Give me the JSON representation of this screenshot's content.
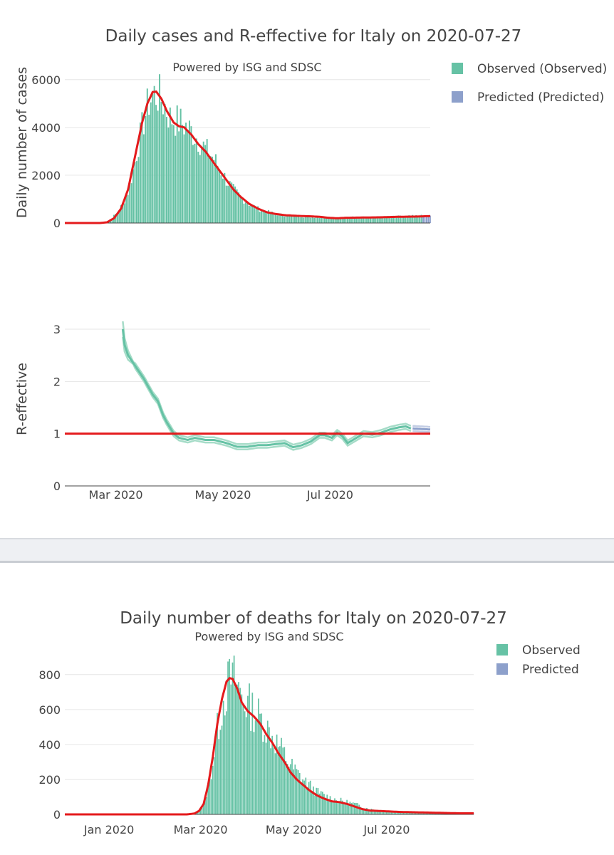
{
  "fig1": {
    "title": "Daily cases and R-effective for Italy on 2020-07-27",
    "annotation": "Powered by ISG and SDSC",
    "legend": [
      {
        "label": "Observed (Observed)",
        "color": "#66c2a5"
      },
      {
        "label": "Predicted (Predicted)",
        "color": "#8da0cb"
      }
    ]
  },
  "fig2": {
    "title": "Daily number of deaths for Italy on 2020-07-27",
    "annotation": "Powered by ISG and SDSC",
    "legend": [
      {
        "label": "Observed",
        "color": "#66c2a5"
      },
      {
        "label": "Predicted",
        "color": "#8da0cb"
      }
    ]
  },
  "colors": {
    "observed": "#66c2a5",
    "predicted": "#8da0cb",
    "smooth": "#e41a1c",
    "grid": "#e6e6e6",
    "axis": "#444444"
  },
  "chart_data": [
    {
      "type": "bar",
      "title": "Daily cases and R-effective for Italy on 2020-07-27",
      "ylabel": "Daily number of cases",
      "ylim": [
        0,
        6500
      ],
      "xlim_day": [
        0,
        208
      ],
      "y_ticks": [
        0,
        2000,
        4000,
        6000
      ],
      "series": [
        {
          "name": "Observed",
          "kind": "bar",
          "keypoints": [
            [
              0,
              0
            ],
            [
              20,
              0
            ],
            [
              23,
              10
            ],
            [
              26,
              100
            ],
            [
              28,
              300
            ],
            [
              30,
              450
            ],
            [
              33,
              800
            ],
            [
              36,
              1300
            ],
            [
              39,
              2200
            ],
            [
              42,
              3300
            ],
            [
              45,
              4300
            ],
            [
              48,
              5100
            ],
            [
              51,
              5400
            ],
            [
              54,
              5300
            ],
            [
              57,
              4900
            ],
            [
              60,
              4400
            ],
            [
              63,
              4300
            ],
            [
              66,
              4200
            ],
            [
              70,
              4000
            ],
            [
              75,
              3600
            ],
            [
              80,
              3100
            ],
            [
              85,
              2700
            ],
            [
              88,
              2300
            ],
            [
              92,
              1800
            ],
            [
              96,
              1400
            ],
            [
              100,
              1100
            ],
            [
              105,
              800
            ],
            [
              110,
              600
            ],
            [
              115,
              480
            ],
            [
              120,
              380
            ],
            [
              125,
              330
            ],
            [
              130,
              300
            ],
            [
              135,
              280
            ],
            [
              140,
              260
            ],
            [
              145,
              250
            ],
            [
              150,
              240
            ],
            [
              155,
              230
            ],
            [
              160,
              230
            ],
            [
              165,
              240
            ],
            [
              170,
              240
            ],
            [
              180,
              250
            ],
            [
              190,
              270
            ],
            [
              200,
              290
            ],
            [
              208,
              300
            ]
          ],
          "noise_amp": 0.18,
          "end_day": 203
        },
        {
          "name": "Predicted",
          "kind": "bar",
          "days": [
            204,
            205,
            206,
            207,
            208
          ],
          "values": [
            290,
            300,
            310,
            300,
            310
          ]
        },
        {
          "name": "Smoothed",
          "kind": "line",
          "keypoints": [
            [
              0,
              0
            ],
            [
              20,
              0
            ],
            [
              24,
              30
            ],
            [
              28,
              200
            ],
            [
              32,
              600
            ],
            [
              36,
              1400
            ],
            [
              40,
              2800
            ],
            [
              44,
              4200
            ],
            [
              47,
              5000
            ],
            [
              50,
              5480
            ],
            [
              52,
              5500
            ],
            [
              55,
              5200
            ],
            [
              58,
              4700
            ],
            [
              62,
              4200
            ],
            [
              65,
              4050
            ],
            [
              68,
              4000
            ],
            [
              72,
              3700
            ],
            [
              76,
              3300
            ],
            [
              80,
              3000
            ],
            [
              84,
              2600
            ],
            [
              88,
              2200
            ],
            [
              92,
              1800
            ],
            [
              96,
              1400
            ],
            [
              100,
              1100
            ],
            [
              105,
              800
            ],
            [
              110,
              600
            ],
            [
              115,
              450
            ],
            [
              120,
              380
            ],
            [
              125,
              330
            ],
            [
              130,
              310
            ],
            [
              135,
              290
            ],
            [
              140,
              280
            ],
            [
              145,
              260
            ],
            [
              150,
              220
            ],
            [
              155,
              200
            ],
            [
              160,
              220
            ],
            [
              170,
              230
            ],
            [
              180,
              240
            ],
            [
              190,
              260
            ],
            [
              200,
              270
            ],
            [
              208,
              290
            ]
          ]
        }
      ],
      "x_ticks": [
        "Mar 2020",
        "May 2020",
        "Jul 2020"
      ]
    },
    {
      "type": "line",
      "ylabel": "R-effective",
      "ylim": [
        0,
        3.3
      ],
      "y_ticks": [
        0,
        1,
        2,
        3
      ],
      "reference_line": 1,
      "x_ticks": [
        "Mar 2020",
        "May 2020",
        "Jul 2020"
      ],
      "series": [
        {
          "name": "R-effective (Observed)",
          "keypoints": [
            [
              33,
              3.0
            ],
            [
              34,
              2.7
            ],
            [
              36,
              2.5
            ],
            [
              40,
              2.3
            ],
            [
              45,
              2.05
            ],
            [
              50,
              1.75
            ],
            [
              53,
              1.62
            ],
            [
              56,
              1.35
            ],
            [
              58,
              1.22
            ],
            [
              62,
              1.0
            ],
            [
              65,
              0.92
            ],
            [
              70,
              0.88
            ],
            [
              74,
              0.92
            ],
            [
              80,
              0.88
            ],
            [
              85,
              0.88
            ],
            [
              92,
              0.82
            ],
            [
              98,
              0.75
            ],
            [
              104,
              0.75
            ],
            [
              110,
              0.78
            ],
            [
              115,
              0.78
            ],
            [
              120,
              0.8
            ],
            [
              125,
              0.82
            ],
            [
              130,
              0.74
            ],
            [
              135,
              0.78
            ],
            [
              140,
              0.85
            ],
            [
              145,
              0.97
            ],
            [
              148,
              0.97
            ],
            [
              152,
              0.92
            ],
            [
              155,
              1.02
            ],
            [
              158,
              0.95
            ],
            [
              161,
              0.82
            ],
            [
              165,
              0.9
            ],
            [
              170,
              1.0
            ],
            [
              175,
              0.98
            ],
            [
              180,
              1.02
            ],
            [
              185,
              1.08
            ],
            [
              190,
              1.12
            ],
            [
              194,
              1.14
            ],
            [
              197,
              1.1
            ]
          ]
        },
        {
          "name": "R-effective (Predicted)",
          "keypoints": [
            [
              198,
              1.1
            ],
            [
              203,
              1.09
            ],
            [
              208,
              1.08
            ]
          ]
        }
      ]
    },
    {
      "type": "bar",
      "title": "Daily number of deaths for Italy on 2020-07-27",
      "ylabel": "",
      "ylim": [
        0,
        950
      ],
      "xlim_day": [
        -60,
        208
      ],
      "y_ticks": [
        0,
        200,
        400,
        600,
        800
      ],
      "x_ticks": [
        "Jan 2020",
        "Mar 2020",
        "May 2020",
        "Jul 2020"
      ],
      "series": [
        {
          "name": "Observed",
          "kind": "bar",
          "keypoints": [
            [
              0,
              0
            ],
            [
              20,
              0
            ],
            [
              25,
              5
            ],
            [
              28,
              20
            ],
            [
              31,
              60
            ],
            [
              34,
              150
            ],
            [
              37,
              300
            ],
            [
              40,
              480
            ],
            [
              43,
              620
            ],
            [
              46,
              720
            ],
            [
              49,
              780
            ],
            [
              52,
              760
            ],
            [
              55,
              700
            ],
            [
              58,
              650
            ],
            [
              61,
              620
            ],
            [
              64,
              590
            ],
            [
              67,
              560
            ],
            [
              70,
              530
            ],
            [
              74,
              470
            ],
            [
              78,
              420
            ],
            [
              82,
              370
            ],
            [
              86,
              310
            ],
            [
              90,
              260
            ],
            [
              95,
              210
            ],
            [
              100,
              170
            ],
            [
              105,
              130
            ],
            [
              110,
              110
            ],
            [
              115,
              90
            ],
            [
              120,
              80
            ],
            [
              125,
              70
            ],
            [
              130,
              60
            ],
            [
              135,
              45
            ],
            [
              140,
              30
            ],
            [
              145,
              25
            ],
            [
              150,
              20
            ],
            [
              160,
              18
            ],
            [
              170,
              15
            ],
            [
              180,
              12
            ],
            [
              190,
              10
            ],
            [
              200,
              8
            ],
            [
              208,
              8
            ]
          ],
          "noise_amp": 0.22,
          "end_day": 203
        },
        {
          "name": "Predicted",
          "kind": "bar",
          "days": [
            204,
            205,
            206,
            207,
            208
          ],
          "values": [
            8,
            7,
            7,
            6,
            6
          ]
        },
        {
          "name": "Smoothed",
          "kind": "line",
          "keypoints": [
            [
              -60,
              0
            ],
            [
              20,
              0
            ],
            [
              25,
              5
            ],
            [
              28,
              20
            ],
            [
              31,
              60
            ],
            [
              34,
              170
            ],
            [
              37,
              330
            ],
            [
              40,
              520
            ],
            [
              43,
              660
            ],
            [
              46,
              760
            ],
            [
              48,
              780
            ],
            [
              50,
              775
            ],
            [
              53,
              720
            ],
            [
              56,
              640
            ],
            [
              60,
              590
            ],
            [
              64,
              560
            ],
            [
              68,
              520
            ],
            [
              72,
              460
            ],
            [
              76,
              410
            ],
            [
              80,
              350
            ],
            [
              84,
              300
            ],
            [
              88,
              240
            ],
            [
              92,
              200
            ],
            [
              96,
              170
            ],
            [
              100,
              140
            ],
            [
              105,
              110
            ],
            [
              110,
              90
            ],
            [
              115,
              75
            ],
            [
              120,
              70
            ],
            [
              125,
              60
            ],
            [
              130,
              45
            ],
            [
              135,
              30
            ],
            [
              140,
              22
            ],
            [
              150,
              18
            ],
            [
              160,
              14
            ],
            [
              170,
              12
            ],
            [
              180,
              10
            ],
            [
              190,
              8
            ],
            [
              200,
              6
            ],
            [
              208,
              6
            ]
          ]
        }
      ]
    }
  ]
}
